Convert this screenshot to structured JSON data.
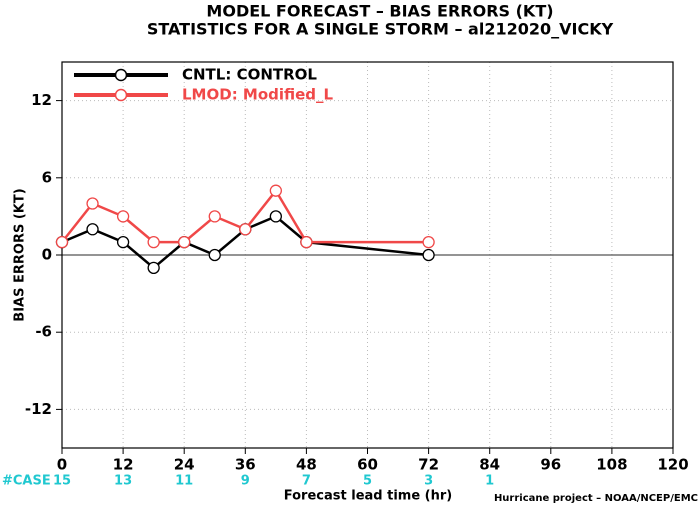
{
  "chart_data": {
    "type": "line",
    "title": "MODEL FORECAST – BIAS ERRORS (KT)",
    "subtitle": "STATISTICS FOR A SINGLE STORM – al212020_VICKY",
    "x_label": "Forecast lead time (hr)",
    "y_label": "BIAS ERRORS (KT)",
    "x": [
      0,
      6,
      12,
      18,
      24,
      30,
      36,
      42,
      48,
      72
    ],
    "series": [
      {
        "name": "CNTL: CONTROL",
        "color": "#000000",
        "values": [
          1,
          2,
          1,
          -1,
          1,
          0,
          2,
          3,
          1,
          0
        ]
      },
      {
        "name": "LMOD: Modified_L",
        "color": "#f04848",
        "values": [
          1,
          4,
          3,
          1,
          1,
          3,
          2,
          5,
          1,
          1
        ]
      }
    ],
    "xlim": [
      0,
      120
    ],
    "xticks": [
      0,
      12,
      24,
      36,
      48,
      60,
      72,
      84,
      96,
      108,
      120
    ],
    "ylim": [
      -15,
      15
    ],
    "yticks": [
      -12,
      -6,
      0,
      6,
      12
    ],
    "grid": true,
    "legend": "upper left",
    "case_label": "#CASE",
    "case_x": [
      0,
      12,
      24,
      36,
      48,
      60,
      72,
      84
    ],
    "case_counts": [
      15,
      13,
      11,
      9,
      7,
      5,
      3,
      1
    ],
    "case_color": "#20c8d0",
    "credit": "Hurricane project – NOAA/NCEP/EMC"
  }
}
